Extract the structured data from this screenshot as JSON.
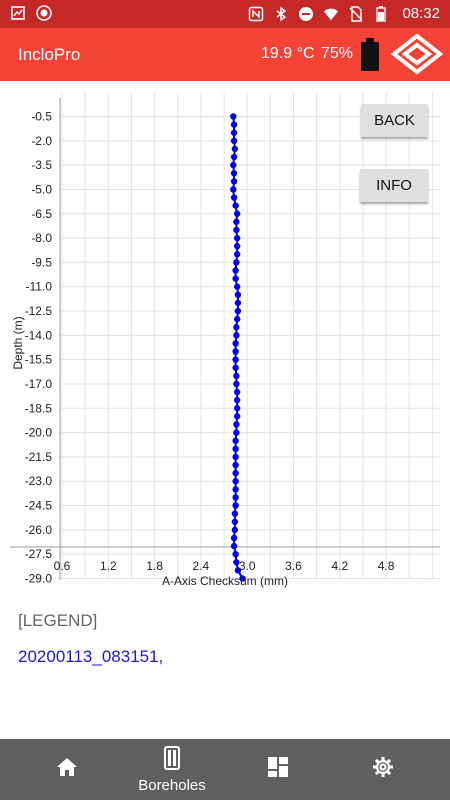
{
  "status_bar": {
    "time": "08:32",
    "left_icons": [
      "notification-icon",
      "record-icon"
    ],
    "right_icons": [
      "nfc-icon",
      "bluetooth-icon",
      "do-not-disturb-icon",
      "wifi-icon",
      "no-sim-icon",
      "battery-status-icon"
    ]
  },
  "app_bar": {
    "title": "IncloPro",
    "temperature": "19.9 °C",
    "battery": "75%",
    "colors": {
      "status_bar": "#c62828",
      "app_bar": "#f44336"
    }
  },
  "buttons": {
    "back": "BACK",
    "info": "INFO"
  },
  "chart_data": {
    "type": "line",
    "xlabel": "A-Axis Checksum (mm)",
    "ylabel": "Depth (m)",
    "xlim": [
      0.6,
      5.4
    ],
    "ylim": [
      -29.0,
      0.0
    ],
    "x_ticks": [
      "0.6",
      "1.2",
      "1.8",
      "2.4",
      "3.0",
      "3.6",
      "4.2",
      "4.8"
    ],
    "y_ticks": [
      "-0.5",
      "-2.0",
      "-3.5",
      "-5.0",
      "-6.5",
      "-8.0",
      "-9.5",
      "-11.0",
      "-12.5",
      "-14.0",
      "-15.5",
      "-17.0",
      "-18.5",
      "-20.0",
      "-21.5",
      "-23.0",
      "-24.5",
      "-26.0",
      "-27.5",
      "-29.0"
    ],
    "grid": true,
    "series": [
      {
        "name": "20200113_083151",
        "color": "#0000ee",
        "y": [
          -0.5,
          -1.0,
          -1.5,
          -2.0,
          -2.5,
          -3.0,
          -3.5,
          -4.0,
          -4.5,
          -5.0,
          -5.5,
          -6.0,
          -6.5,
          -7.0,
          -7.5,
          -8.0,
          -8.5,
          -9.0,
          -9.5,
          -10.0,
          -10.5,
          -11.0,
          -11.5,
          -12.0,
          -12.5,
          -13.0,
          -13.5,
          -14.0,
          -14.5,
          -15.0,
          -15.5,
          -16.0,
          -16.5,
          -17.0,
          -17.5,
          -18.0,
          -18.5,
          -19.0,
          -19.5,
          -20.0,
          -20.5,
          -21.0,
          -21.5,
          -22.0,
          -22.5,
          -23.0,
          -23.5,
          -24.0,
          -24.5,
          -25.0,
          -25.5,
          -26.0,
          -26.5,
          -27.0,
          -27.5,
          -28.0,
          -28.5,
          -29.0
        ],
        "x": [
          2.82,
          2.83,
          2.83,
          2.83,
          2.84,
          2.83,
          2.82,
          2.83,
          2.83,
          2.82,
          2.83,
          2.85,
          2.87,
          2.86,
          2.86,
          2.87,
          2.87,
          2.87,
          2.86,
          2.85,
          2.85,
          2.87,
          2.88,
          2.88,
          2.88,
          2.87,
          2.86,
          2.86,
          2.85,
          2.85,
          2.85,
          2.85,
          2.86,
          2.86,
          2.87,
          2.87,
          2.87,
          2.87,
          2.86,
          2.86,
          2.85,
          2.85,
          2.85,
          2.85,
          2.85,
          2.85,
          2.85,
          2.85,
          2.85,
          2.84,
          2.84,
          2.84,
          2.83,
          2.83,
          2.85,
          2.86,
          2.88,
          2.94
        ]
      }
    ]
  },
  "legend": {
    "title": "[LEGEND]",
    "entry": "20200113_083151,"
  },
  "bottom_nav": [
    {
      "icon": "home-icon",
      "label": ""
    },
    {
      "icon": "boreholes-icon",
      "label": "Boreholes"
    },
    {
      "icon": "dashboard-icon",
      "label": ""
    },
    {
      "icon": "settings-icon",
      "label": ""
    }
  ]
}
